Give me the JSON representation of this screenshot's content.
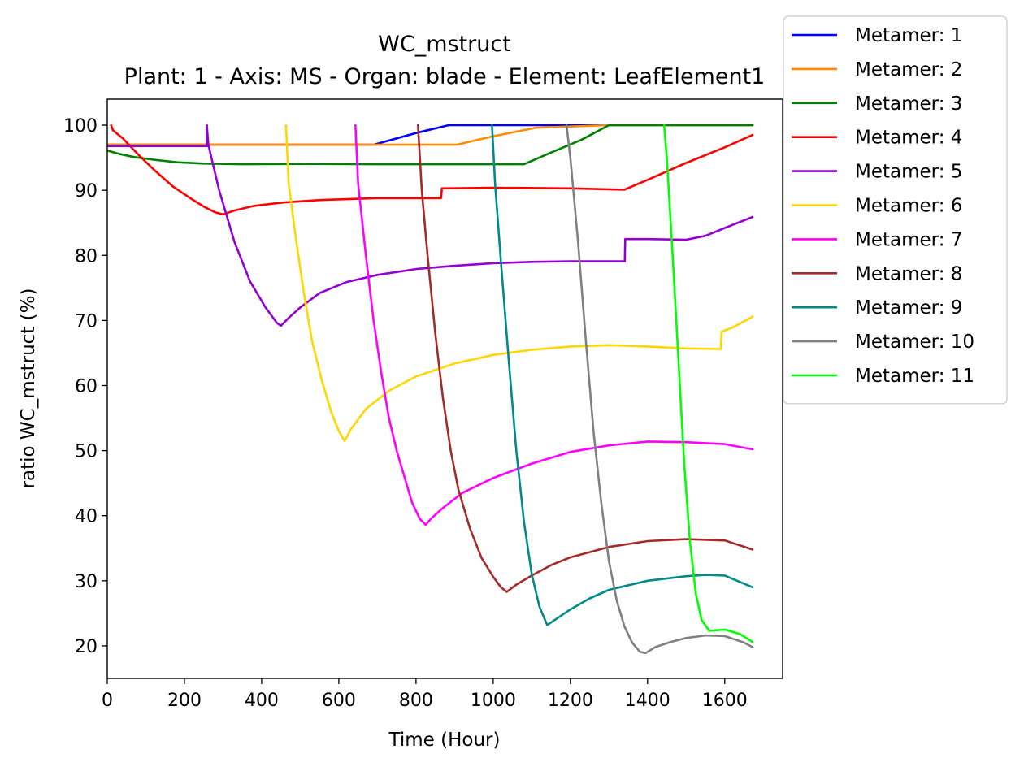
{
  "chart_data": {
    "type": "line",
    "title": "WC_mstruct",
    "subtitle": "Plant: 1 - Axis: MS - Organ: blade - Element: LeafElement1",
    "xlabel": "Time (Hour)",
    "ylabel": "ratio WC_mstruct (%)",
    "xlim": [
      0,
      1750
    ],
    "ylim": [
      15,
      104
    ],
    "x_ticks": [
      0,
      200,
      400,
      600,
      800,
      1000,
      1200,
      1400,
      1600
    ],
    "y_ticks": [
      20,
      30,
      40,
      50,
      60,
      70,
      80,
      90,
      100
    ],
    "grid": false,
    "legend_position": "top-right (outside plot area)",
    "series": [
      {
        "name": "Metamer: 1",
        "color": "#0000ff",
        "points": [
          [
            0,
            97
          ],
          [
            690,
            97
          ],
          [
            800,
            98.8
          ],
          [
            885,
            100
          ],
          [
            1672,
            100
          ]
        ]
      },
      {
        "name": "Metamer: 2",
        "color": "#ff8c00",
        "points": [
          [
            0,
            97
          ],
          [
            700,
            97
          ],
          [
            905,
            97
          ],
          [
            1000,
            98.3
          ],
          [
            1110,
            99.6
          ],
          [
            1300,
            100
          ],
          [
            1672,
            100
          ]
        ]
      },
      {
        "name": "Metamer: 3",
        "color": "#008000",
        "points": [
          [
            0,
            96.1
          ],
          [
            30,
            95.6
          ],
          [
            70,
            95.1
          ],
          [
            120,
            94.7
          ],
          [
            180,
            94.3
          ],
          [
            250,
            94.1
          ],
          [
            350,
            94
          ],
          [
            500,
            94.05
          ],
          [
            700,
            94
          ],
          [
            900,
            94
          ],
          [
            1080,
            94
          ],
          [
            1150,
            95.8
          ],
          [
            1230,
            97.8
          ],
          [
            1300,
            100
          ],
          [
            1672,
            100
          ]
        ]
      },
      {
        "name": "Metamer: 4",
        "color": "#ff0000",
        "points": [
          [
            10,
            100
          ],
          [
            15,
            99.2
          ],
          [
            40,
            98
          ],
          [
            80,
            95.5
          ],
          [
            120,
            93.2
          ],
          [
            170,
            90.6
          ],
          [
            220,
            88.6
          ],
          [
            250,
            87.5
          ],
          [
            280,
            86.6
          ],
          [
            300,
            86.3
          ],
          [
            330,
            86.9
          ],
          [
            380,
            87.6
          ],
          [
            450,
            88.1
          ],
          [
            550,
            88.5
          ],
          [
            700,
            88.8
          ],
          [
            865,
            88.8
          ],
          [
            867,
            90.3
          ],
          [
            1000,
            90.4
          ],
          [
            1200,
            90.3
          ],
          [
            1340,
            90.1
          ],
          [
            1400,
            91.6
          ],
          [
            1500,
            94.2
          ],
          [
            1600,
            96.6
          ],
          [
            1672,
            98.5
          ]
        ]
      },
      {
        "name": "Metamer: 5",
        "color": "#9400d3",
        "points": [
          [
            0,
            96.8
          ],
          [
            258,
            96.8
          ],
          [
            258,
            100
          ],
          [
            262,
            97
          ],
          [
            290,
            90
          ],
          [
            330,
            82
          ],
          [
            370,
            76
          ],
          [
            410,
            72
          ],
          [
            440,
            69.6
          ],
          [
            450,
            69.2
          ],
          [
            470,
            70.4
          ],
          [
            500,
            72
          ],
          [
            550,
            74.2
          ],
          [
            620,
            75.9
          ],
          [
            700,
            77
          ],
          [
            800,
            77.9
          ],
          [
            900,
            78.4
          ],
          [
            1000,
            78.8
          ],
          [
            1100,
            79
          ],
          [
            1200,
            79.1
          ],
          [
            1341,
            79.1
          ],
          [
            1342,
            82.5
          ],
          [
            1400,
            82.5
          ],
          [
            1500,
            82.4
          ],
          [
            1550,
            83
          ],
          [
            1600,
            84.2
          ],
          [
            1672,
            85.9
          ]
        ]
      },
      {
        "name": "Metamer: 6",
        "color": "#ffd700",
        "points": [
          [
            463,
            100
          ],
          [
            470,
            91
          ],
          [
            490,
            82
          ],
          [
            510,
            74
          ],
          [
            530,
            67
          ],
          [
            555,
            61
          ],
          [
            580,
            56
          ],
          [
            600,
            53
          ],
          [
            615,
            51.5
          ],
          [
            630,
            53.2
          ],
          [
            670,
            56.4
          ],
          [
            730,
            59.2
          ],
          [
            800,
            61.4
          ],
          [
            900,
            63.4
          ],
          [
            1000,
            64.7
          ],
          [
            1100,
            65.5
          ],
          [
            1200,
            66
          ],
          [
            1300,
            66.2
          ],
          [
            1400,
            66
          ],
          [
            1500,
            65.7
          ],
          [
            1590,
            65.6
          ],
          [
            1592,
            68.3
          ],
          [
            1620,
            68.9
          ],
          [
            1672,
            70.6
          ]
        ]
      },
      {
        "name": "Metamer: 7",
        "color": "#ff00ff",
        "points": [
          [
            643,
            100
          ],
          [
            650,
            91
          ],
          [
            670,
            80
          ],
          [
            690,
            70
          ],
          [
            710,
            62
          ],
          [
            730,
            55
          ],
          [
            750,
            50
          ],
          [
            770,
            46
          ],
          [
            790,
            42
          ],
          [
            810,
            39.5
          ],
          [
            825,
            38.6
          ],
          [
            840,
            39.6
          ],
          [
            870,
            41.2
          ],
          [
            920,
            43.5
          ],
          [
            1000,
            45.8
          ],
          [
            1100,
            48
          ],
          [
            1200,
            49.8
          ],
          [
            1300,
            50.8
          ],
          [
            1400,
            51.4
          ],
          [
            1500,
            51.3
          ],
          [
            1600,
            51
          ],
          [
            1672,
            50.2
          ]
        ]
      },
      {
        "name": "Metamer: 8",
        "color": "#a52a2a",
        "points": [
          [
            805,
            100
          ],
          [
            815,
            90
          ],
          [
            830,
            80
          ],
          [
            850,
            68
          ],
          [
            870,
            58
          ],
          [
            890,
            50
          ],
          [
            910,
            44
          ],
          [
            940,
            38
          ],
          [
            970,
            33.5
          ],
          [
            1000,
            30.6
          ],
          [
            1020,
            29
          ],
          [
            1035,
            28.3
          ],
          [
            1060,
            29.4
          ],
          [
            1100,
            30.8
          ],
          [
            1150,
            32.4
          ],
          [
            1200,
            33.6
          ],
          [
            1300,
            35.2
          ],
          [
            1400,
            36.1
          ],
          [
            1500,
            36.4
          ],
          [
            1600,
            36.2
          ],
          [
            1672,
            34.8
          ]
        ]
      },
      {
        "name": "Metamer: 9",
        "color": "#008b8b",
        "points": [
          [
            997,
            100
          ],
          [
            1005,
            91
          ],
          [
            1020,
            79
          ],
          [
            1040,
            64
          ],
          [
            1060,
            50
          ],
          [
            1080,
            39
          ],
          [
            1100,
            31
          ],
          [
            1120,
            26
          ],
          [
            1140,
            23.2
          ],
          [
            1160,
            24
          ],
          [
            1200,
            25.6
          ],
          [
            1250,
            27.3
          ],
          [
            1300,
            28.6
          ],
          [
            1400,
            30
          ],
          [
            1500,
            30.7
          ],
          [
            1550,
            30.9
          ],
          [
            1600,
            30.8
          ],
          [
            1672,
            29
          ]
        ]
      },
      {
        "name": "Metamer: 10",
        "color": "#808080",
        "points": [
          [
            1190,
            100
          ],
          [
            1200,
            95
          ],
          [
            1220,
            82
          ],
          [
            1240,
            67
          ],
          [
            1260,
            53
          ],
          [
            1280,
            42
          ],
          [
            1300,
            33
          ],
          [
            1320,
            27
          ],
          [
            1340,
            23
          ],
          [
            1360,
            20.5
          ],
          [
            1380,
            19.1
          ],
          [
            1395,
            18.9
          ],
          [
            1420,
            19.8
          ],
          [
            1460,
            20.6
          ],
          [
            1500,
            21.2
          ],
          [
            1550,
            21.6
          ],
          [
            1600,
            21.5
          ],
          [
            1650,
            20.5
          ],
          [
            1672,
            19.8
          ]
        ]
      },
      {
        "name": "Metamer: 11",
        "color": "#00ff00",
        "points": [
          [
            1443,
            100
          ],
          [
            1450,
            95
          ],
          [
            1465,
            80
          ],
          [
            1480,
            64
          ],
          [
            1495,
            48
          ],
          [
            1510,
            36
          ],
          [
            1525,
            28
          ],
          [
            1540,
            24
          ],
          [
            1560,
            22.3
          ],
          [
            1600,
            22.5
          ],
          [
            1640,
            21.8
          ],
          [
            1672,
            20.6
          ]
        ]
      }
    ]
  }
}
